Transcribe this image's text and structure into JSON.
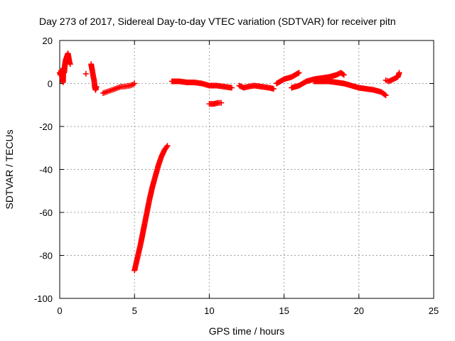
{
  "chart_data": {
    "type": "scatter",
    "title": "Day 273 of 2017, Sidereal Day-to-day VTEC variation (SDTVAR) for receiver pitn",
    "xlabel": "GPS time / hours",
    "ylabel": "SDTVAR / TECUs",
    "xlim": [
      0,
      25
    ],
    "ylim": [
      -100,
      20
    ],
    "xticks": [
      0,
      5,
      10,
      15,
      20,
      25
    ],
    "yticks": [
      -100,
      -80,
      -60,
      -40,
      -20,
      0,
      20
    ],
    "grid": true,
    "marker": "plus",
    "color": "#ff0000",
    "series": [
      {
        "segments": [
          [
            [
              0.0,
              5
            ],
            [
              0.05,
              4
            ],
            [
              0.1,
              6
            ],
            [
              0.15,
              3
            ],
            [
              0.2,
              2
            ],
            [
              0.22,
              0.5
            ],
            [
              0.25,
              7
            ],
            [
              0.3,
              5
            ],
            [
              0.35,
              9
            ],
            [
              0.4,
              11
            ],
            [
              0.45,
              12
            ],
            [
              0.5,
              13
            ],
            [
              0.55,
              14
            ],
            [
              0.6,
              12
            ],
            [
              0.65,
              10
            ],
            [
              0.7,
              9
            ]
          ],
          [
            [
              1.75,
              4.5
            ]
          ],
          [
            [
              2.1,
              9
            ],
            [
              2.15,
              7
            ],
            [
              2.2,
              5
            ],
            [
              2.25,
              3
            ],
            [
              2.3,
              1.5
            ],
            [
              2.35,
              -2
            ],
            [
              2.4,
              -3
            ],
            [
              2.45,
              -1.5
            ]
          ],
          [
            [
              2.9,
              -4.5
            ],
            [
              3.1,
              -4
            ],
            [
              3.3,
              -3.5
            ],
            [
              3.5,
              -3
            ],
            [
              3.7,
              -2.5
            ],
            [
              3.9,
              -2
            ],
            [
              4.1,
              -1.5
            ],
            [
              4.3,
              -1.5
            ],
            [
              4.5,
              -1.2
            ],
            [
              4.7,
              -1
            ],
            [
              4.9,
              -0.5
            ],
            [
              5.0,
              0
            ]
          ],
          [
            [
              5.0,
              -87
            ],
            [
              5.2,
              -81
            ],
            [
              5.4,
              -75
            ],
            [
              5.6,
              -68
            ],
            [
              5.8,
              -61
            ],
            [
              6.0,
              -54
            ],
            [
              6.2,
              -48
            ],
            [
              6.4,
              -43
            ],
            [
              6.6,
              -38
            ],
            [
              6.8,
              -34
            ],
            [
              7.0,
              -31
            ],
            [
              7.2,
              -29
            ]
          ],
          [
            [
              7.5,
              1
            ],
            [
              8,
              1
            ],
            [
              8.5,
              0.5
            ],
            [
              9,
              0.5
            ],
            [
              9.5,
              0
            ],
            [
              10,
              -1
            ],
            [
              10.5,
              -1
            ],
            [
              11,
              -1.5
            ],
            [
              11.5,
              -2
            ]
          ],
          [
            [
              10.0,
              -9.5
            ],
            [
              10.3,
              -9.5
            ],
            [
              10.6,
              -9
            ],
            [
              10.8,
              -9
            ]
          ],
          [
            [
              12,
              -1
            ],
            [
              12.3,
              -2
            ],
            [
              12.6,
              -1.5
            ],
            [
              13,
              -1
            ],
            [
              13.5,
              -1.5
            ],
            [
              14,
              -2
            ],
            [
              14.3,
              -2.5
            ]
          ],
          [
            [
              14.5,
              0
            ],
            [
              15,
              2
            ],
            [
              15.5,
              3
            ],
            [
              16,
              5
            ]
          ],
          [
            [
              15.5,
              -2
            ],
            [
              16,
              -1
            ],
            [
              16.5,
              1
            ],
            [
              17,
              2
            ],
            [
              17.5,
              2.5
            ],
            [
              18,
              3
            ],
            [
              18.5,
              4
            ],
            [
              18.8,
              5
            ],
            [
              19,
              4
            ]
          ],
          [
            [
              17,
              1
            ],
            [
              18,
              1
            ],
            [
              19,
              0
            ],
            [
              20,
              -2
            ],
            [
              21,
              -3
            ],
            [
              21.5,
              -4
            ],
            [
              21.8,
              -5.5
            ]
          ],
          [
            [
              21.8,
              1.5
            ],
            [
              22,
              1
            ],
            [
              22.3,
              2
            ],
            [
              22.6,
              3
            ],
            [
              22.7,
              5
            ]
          ]
        ]
      }
    ]
  }
}
